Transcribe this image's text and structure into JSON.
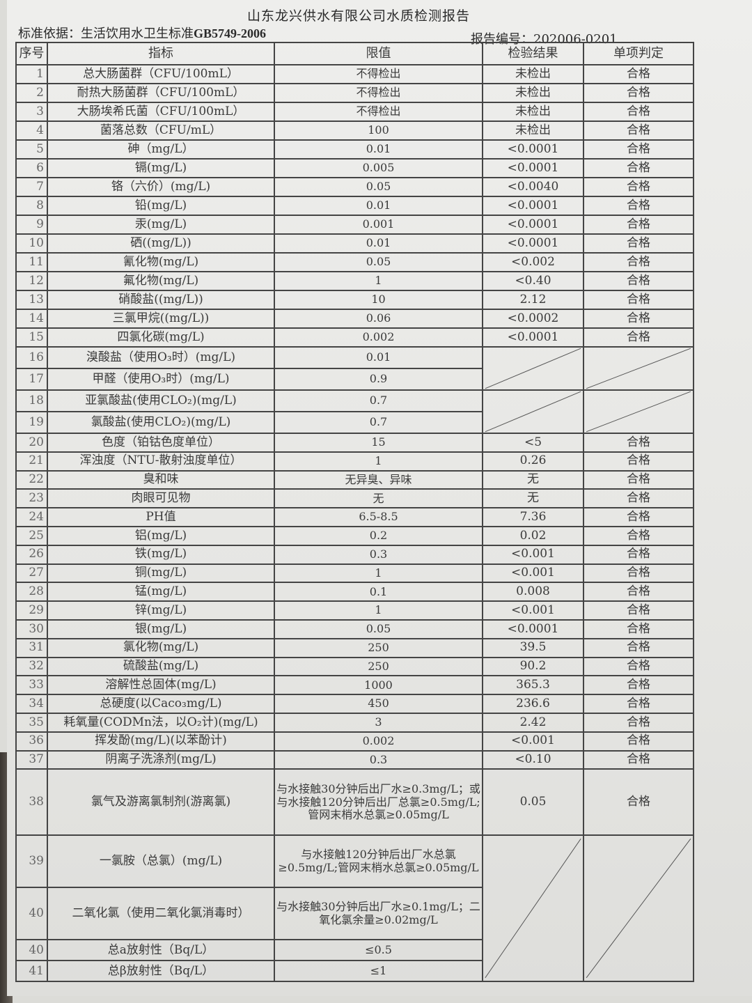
{
  "title": "山东龙兴供水有限公司水质检测报告",
  "basis_label": "标准依据：生活饮用水卫生标准",
  "basis_code": "GB5749-2006",
  "report_no": "报告编号：202006-0201",
  "headers": [
    "序号",
    "指标",
    "限值",
    "检验结果",
    "单项判定"
  ],
  "rows": [
    [
      "1",
      "总大肠菌群（CFU/100mL）",
      "不得检出",
      "未检出",
      "合格"
    ],
    [
      "2",
      "耐热大肠菌群（CFU/100mL）",
      "不得检出",
      "未检出",
      "合格"
    ],
    [
      "3",
      "大肠埃希氏菌（CFU/100mL）",
      "不得检出",
      "未检出",
      "合格"
    ],
    [
      "4",
      "菌落总数（CFU/mL）",
      "100",
      "未检出",
      "合格"
    ],
    [
      "5",
      "砷（mg/L）",
      "0.01",
      "<0.0001",
      "合格"
    ],
    [
      "6",
      "镉(mg/L)",
      "0.005",
      "<0.0001",
      "合格"
    ],
    [
      "7",
      "铬（六价）(mg/L)",
      "0.05",
      "<0.0040",
      "合格"
    ],
    [
      "8",
      "铅(mg/L)",
      "0.01",
      "<0.0001",
      "合格"
    ],
    [
      "9",
      "汞(mg/L)",
      "0.001",
      "<0.0001",
      "合格"
    ],
    [
      "10",
      "硒((mg/L))",
      "0.01",
      "<0.0001",
      "合格"
    ],
    [
      "11",
      "氰化物(mg/L)",
      "0.05",
      "<0.002",
      "合格"
    ],
    [
      "12",
      "氟化物(mg/L)",
      "1",
      "<0.40",
      "合格"
    ],
    [
      "13",
      "硝酸盐((mg/L))",
      "10",
      "2.12",
      "合格"
    ],
    [
      "14",
      "三氯甲烷((mg/L))",
      "0.06",
      "<0.0002",
      "合格"
    ],
    [
      "15",
      "四氯化碳(mg/L)",
      "0.002",
      "<0.0001",
      "合格"
    ],
    [
      "16",
      "溴酸盐（使用O₃时）(mg/L)",
      "0.01",
      null,
      null
    ],
    [
      "17",
      "甲醛（使用O₃时）(mg/L)",
      "0.9",
      null,
      null
    ],
    [
      "18",
      "亚氯酸盐(使用CLO₂)(mg/L)",
      "0.7",
      null,
      null
    ],
    [
      "19",
      "氯酸盐(使用CLO₂)(mg/L)",
      "0.7",
      null,
      null
    ],
    [
      "20",
      "色度（铂钴色度单位）",
      "15",
      "<5",
      "合格"
    ],
    [
      "21",
      "浑浊度（NTU-散射浊度单位）",
      "1",
      "0.26",
      "合格"
    ],
    [
      "22",
      "臭和味",
      "无异臭、异味",
      "无",
      "合格"
    ],
    [
      "23",
      "肉眼可见物",
      "无",
      "无",
      "合格"
    ],
    [
      "24",
      "PH值",
      "6.5-8.5",
      "7.36",
      "合格"
    ],
    [
      "25",
      "铝(mg/L)",
      "0.2",
      "0.02",
      "合格"
    ],
    [
      "26",
      "铁(mg/L)",
      "0.3",
      "<0.001",
      "合格"
    ],
    [
      "27",
      "铜(mg/L)",
      "1",
      "<0.001",
      "合格"
    ],
    [
      "28",
      "锰(mg/L)",
      "0.1",
      "0.008",
      "合格"
    ],
    [
      "29",
      "锌(mg/L)",
      "1",
      "<0.001",
      "合格"
    ],
    [
      "30",
      "银(mg/L)",
      "0.05",
      "<0.0001",
      "合格"
    ],
    [
      "31",
      "氯化物(mg/L)",
      "250",
      "39.5",
      "合格"
    ],
    [
      "32",
      "硫酸盐(mg/L)",
      "250",
      "90.2",
      "合格"
    ],
    [
      "33",
      "溶解性总固体(mg/L)",
      "1000",
      "365.3",
      "合格"
    ],
    [
      "34",
      "总硬度(以Caco₃mg/L)",
      "450",
      "236.6",
      "合格"
    ],
    [
      "35",
      "耗氧量(CODMn法，以O₂计)(mg/L)",
      "3",
      "2.42",
      "合格"
    ],
    [
      "36",
      "挥发酚(mg/L)(以苯酚计)",
      "0.002",
      "<0.001",
      "合格"
    ],
    [
      "37",
      "阴离子洗涤剂(mg/L)",
      "0.3",
      "<0.10",
      "合格"
    ],
    [
      "38",
      "氯气及游离氯制剂(游离氯)",
      "与水接触30分钟后出厂水≥0.3mg/L；或与水接触120分钟后出厂总氯≥0.5mg/L;管网末梢水总氯≥0.05mg/L",
      "0.05",
      "合格"
    ],
    [
      "39",
      "一氯胺（总氯）(mg/L)",
      "与水接触120分钟后出厂水总氯≥0.5mg/L;管网末梢水总氯≥0.05mg/L",
      null,
      null
    ],
    [
      "40",
      "二氧化氯（使用二氧化氯消毒时）",
      "与水接触30分钟后出厂水≥0.1mg/L；二氧化氯余量≥0.02mg/L",
      null,
      null
    ],
    [
      "40",
      "总a放射性（Bq/L）",
      "≤0.5",
      null,
      null
    ],
    [
      "41",
      "总β放射性（Bq/L）",
      "≤1",
      null,
      null
    ]
  ],
  "not_applicable_groups": [
    [
      15,
      16
    ],
    [
      17,
      18
    ],
    [
      38,
      41
    ]
  ]
}
